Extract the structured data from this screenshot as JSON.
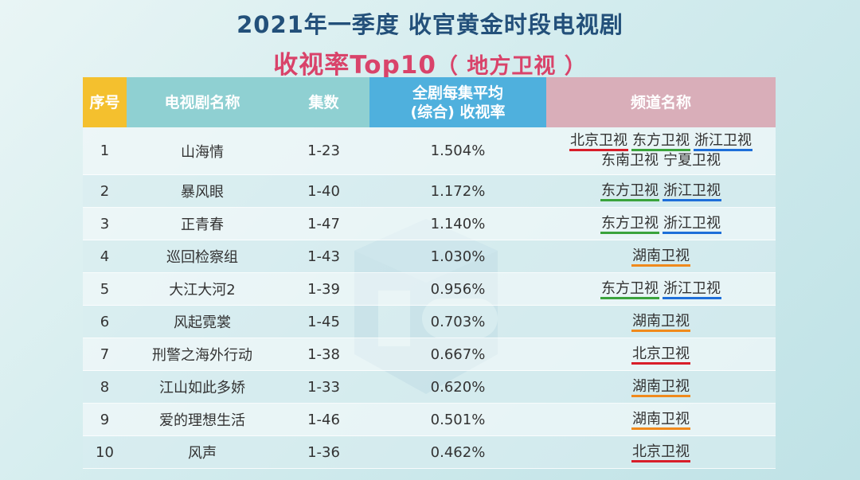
{
  "title_line1": "2021年一季度 收官黄金时段电视剧",
  "title_line2_main": "收视率Top10",
  "title_line2_paren": "（ 地方卫视 ）",
  "columns": [
    "序号",
    "电视剧名称",
    "集数",
    "全剧每集平均\n(综合) 收视率",
    "频道名称"
  ],
  "channel_colors": {
    "北京卫视": "#d81e2a",
    "东方卫视": "#3aa33c",
    "浙江卫视": "#1e6fd9",
    "湖南卫视": "#f08a1c",
    "东南卫视": "",
    "宁夏卫视": ""
  },
  "rows": [
    {
      "no": "1",
      "name": "山海情",
      "eps": "1-23",
      "rate": "1.504%",
      "channels": [
        [
          "北京卫视",
          "东方卫视",
          "浙江卫视"
        ],
        [
          "东南卫视",
          "宁夏卫视"
        ]
      ]
    },
    {
      "no": "2",
      "name": "暴风眼",
      "eps": "1-40",
      "rate": "1.172%",
      "channels": [
        [
          "东方卫视",
          "浙江卫视"
        ]
      ]
    },
    {
      "no": "3",
      "name": "正青春",
      "eps": "1-47",
      "rate": "1.140%",
      "channels": [
        [
          "东方卫视",
          "浙江卫视"
        ]
      ]
    },
    {
      "no": "4",
      "name": "巡回检察组",
      "eps": "1-43",
      "rate": "1.030%",
      "channels": [
        [
          "湖南卫视"
        ]
      ]
    },
    {
      "no": "5",
      "name": "大江大河2",
      "eps": "1-39",
      "rate": "0.956%",
      "channels": [
        [
          "东方卫视",
          "浙江卫视"
        ]
      ]
    },
    {
      "no": "6",
      "name": "风起霓裳",
      "eps": "1-45",
      "rate": "0.703%",
      "channels": [
        [
          "湖南卫视"
        ]
      ]
    },
    {
      "no": "7",
      "name": "刑警之海外行动",
      "eps": "1-38",
      "rate": "0.667%",
      "channels": [
        [
          "北京卫视"
        ]
      ]
    },
    {
      "no": "8",
      "name": "江山如此多娇",
      "eps": "1-33",
      "rate": "0.620%",
      "channels": [
        [
          "湖南卫视"
        ]
      ]
    },
    {
      "no": "9",
      "name": "爱的理想生活",
      "eps": "1-46",
      "rate": "0.501%",
      "channels": [
        [
          "湖南卫视"
        ]
      ]
    },
    {
      "no": "10",
      "name": "风声",
      "eps": "1-36",
      "rate": "0.462%",
      "channels": [
        [
          "北京卫视"
        ]
      ]
    }
  ]
}
